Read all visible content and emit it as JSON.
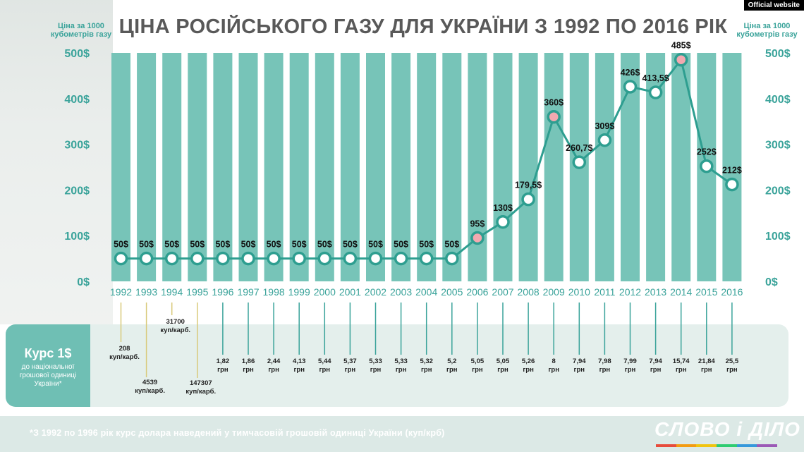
{
  "title": "ЦІНА РОСІЙСЬКОГО ГАЗУ ДЛЯ УКРАЇНИ З 1992 ПО 2016 РІК",
  "badge": "Official website",
  "axis_caption_left": "Ціна за 1000 кубометрів газу",
  "axis_caption_right": "Ціна за 1000 кубометрів газу",
  "rate_panel": {
    "title": "Курс 1$",
    "subtitle": "до національної грошової одиниці України*"
  },
  "footnote": "*З 1992 по 1996 рік курс долара наведений у тимчасовій грошовій одиниці України (куп/крб)",
  "logo": "СЛОВО і ДІЛО",
  "colors": {
    "bar": "#77c4b8",
    "line": "#2e9e90",
    "accent": "#3aa39a",
    "highlight_dot": "#f2a9b0"
  },
  "chart_data": {
    "type": "line",
    "title": "ЦІНА РОСІЙСЬКОГО ГАЗУ ДЛЯ УКРАЇНИ З 1992 ПО 2016 РІК",
    "ylabel": "Ціна за 1000 кубометрів газу",
    "ylim": [
      0,
      500
    ],
    "yticks": [
      "0$",
      "100$",
      "200$",
      "300$",
      "400$",
      "500$"
    ],
    "x": [
      "1992",
      "1993",
      "1994",
      "1995",
      "1996",
      "1997",
      "1998",
      "1999",
      "2000",
      "2001",
      "2002",
      "2003",
      "2004",
      "2005",
      "2006",
      "2007",
      "2008",
      "2009",
      "2010",
      "2011",
      "2012",
      "2013",
      "2014",
      "2015",
      "2016"
    ],
    "values": [
      50,
      50,
      50,
      50,
      50,
      50,
      50,
      50,
      50,
      50,
      50,
      50,
      50,
      50,
      95,
      130,
      179.5,
      360,
      260.7,
      309,
      426,
      413.5,
      485,
      252,
      212
    ],
    "value_labels": [
      "50$",
      "50$",
      "50$",
      "50$",
      "50$",
      "50$",
      "50$",
      "50$",
      "50$",
      "50$",
      "50$",
      "50$",
      "50$",
      "50$",
      "95$",
      "130$",
      "179,5$",
      "360$",
      "260,7$",
      "309$",
      "426$",
      "413,5$",
      "485$",
      "252$",
      "212$"
    ],
    "highlight_years": [
      "2006",
      "2009",
      "2014"
    ],
    "exchange_rate": [
      {
        "value": "208",
        "unit": "куп/карб."
      },
      {
        "value": "4539",
        "unit": "куп/карб."
      },
      {
        "value": "31700",
        "unit": "куп/карб."
      },
      {
        "value": "147307",
        "unit": "куп/карб."
      },
      {
        "value": "1,82",
        "unit": "грн"
      },
      {
        "value": "1,86",
        "unit": "грн"
      },
      {
        "value": "2,44",
        "unit": "грн"
      },
      {
        "value": "4,13",
        "unit": "грн"
      },
      {
        "value": "5,44",
        "unit": "грн"
      },
      {
        "value": "5,37",
        "unit": "грн"
      },
      {
        "value": "5,33",
        "unit": "грн"
      },
      {
        "value": "5,33",
        "unit": "грн"
      },
      {
        "value": "5,32",
        "unit": "грн"
      },
      {
        "value": "5,2",
        "unit": "грн"
      },
      {
        "value": "5,05",
        "unit": "грн"
      },
      {
        "value": "5,05",
        "unit": "грн"
      },
      {
        "value": "5,26",
        "unit": "грн"
      },
      {
        "value": "8",
        "unit": "грн"
      },
      {
        "value": "7,94",
        "unit": "грн"
      },
      {
        "value": "7,98",
        "unit": "грн"
      },
      {
        "value": "7,99",
        "unit": "грн"
      },
      {
        "value": "7,94",
        "unit": "грн"
      },
      {
        "value": "15,74",
        "unit": "грн"
      },
      {
        "value": "21,84",
        "unit": "грн"
      },
      {
        "value": "25,5",
        "unit": "грн"
      }
    ]
  }
}
